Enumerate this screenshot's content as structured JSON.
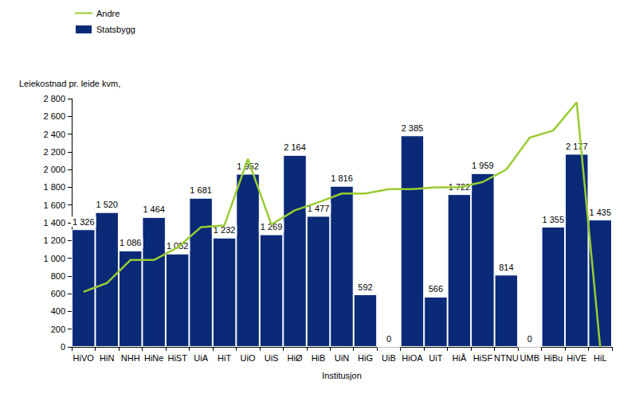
{
  "chart_data": {
    "type": "bar",
    "y_label": "Leiekostnad pr. leide kvm,",
    "x_label": "Institusjon",
    "categories": [
      "HiVO",
      "HiN",
      "NHH",
      "HiNe",
      "HiST",
      "UiA",
      "HiT",
      "UiO",
      "UiS",
      "HiØ",
      "HiB",
      "UiN",
      "HiG",
      "UiB",
      "HiOA",
      "UiT",
      "HiÅ",
      "HiSF",
      "NTNU",
      "UMB",
      "HiBu",
      "HiVE",
      "HiL"
    ],
    "series": [
      {
        "name": "Andre",
        "type": "line",
        "color": "#99cc33",
        "values": [
          620,
          720,
          980,
          980,
          1120,
          1350,
          1370,
          2120,
          1380,
          1540,
          1630,
          1730,
          1730,
          1780,
          1780,
          1800,
          1800,
          1860,
          2000,
          2360,
          2440,
          2760,
          0
        ]
      },
      {
        "name": "Statsbygg",
        "type": "bar",
        "color": "#0a2a78",
        "data_labels": true,
        "values": [
          1326,
          1520,
          1086,
          1464,
          1052,
          1681,
          1232,
          1952,
          1269,
          2164,
          1477,
          1816,
          592,
          0,
          2385,
          566,
          1722,
          1959,
          814,
          0,
          1355,
          2177,
          1435
        ],
        "value_labels": [
          "1 326",
          "1 520",
          "1 086",
          "1 464",
          "1 052",
          "1 681",
          "1 232",
          "1 952",
          "1 269",
          "2 164",
          "1 477",
          "1 816",
          "592",
          "0",
          "2 385",
          "566",
          "1 722",
          "1 959",
          "814",
          "0",
          "1 355",
          "2 177",
          "1 435"
        ]
      }
    ],
    "ylim": [
      0,
      2800
    ],
    "yticks": [
      0,
      200,
      400,
      600,
      800,
      {
        "value": 1000,
        "label": "1 000"
      },
      {
        "value": 1200,
        "label": "1 200"
      },
      {
        "value": 1400,
        "label": "1 400"
      },
      {
        "value": 1600,
        "label": "1 600"
      },
      {
        "value": 1800,
        "label": "1 800"
      },
      {
        "value": 2000,
        "label": "2 000"
      },
      {
        "value": 2200,
        "label": "2 200"
      },
      {
        "value": 2400,
        "label": "2 400"
      },
      {
        "value": 2600,
        "label": "2 600"
      },
      {
        "value": 2800,
        "label": "2 800"
      }
    ],
    "grid": false,
    "legend": "top-left"
  }
}
